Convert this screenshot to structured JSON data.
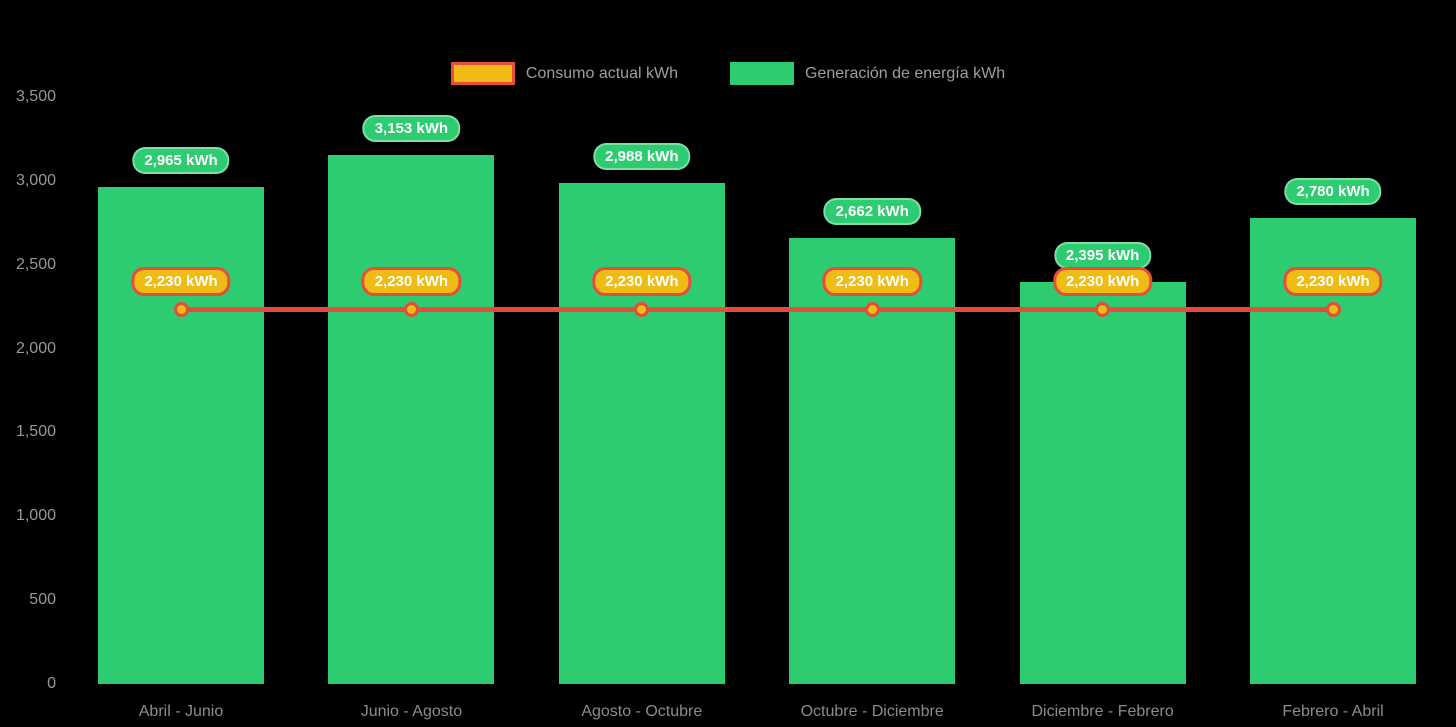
{
  "legend": {
    "items": [
      {
        "label": "Consumo actual kWh",
        "swatch": "consumption"
      },
      {
        "label": "Generación de energía kWh",
        "swatch": "generation"
      }
    ]
  },
  "colors": {
    "background": "#000000",
    "bar_green": "#2ecc71",
    "line_red": "#e64c3c",
    "marker_yellow": "#eebc15",
    "axis_text_gray": "#989898",
    "pill_text": "#ffffff"
  },
  "chart_data": {
    "type": "bar",
    "subtype": "bar-with-line-overlay",
    "categories": [
      "Abril - Junio",
      "Junio - Agosto",
      "Agosto - Octubre",
      "Octubre - Diciembre",
      "Diciembre - Febrero",
      "Febrero - Abril"
    ],
    "series": [
      {
        "name": "Generación de energía kWh",
        "type": "bar",
        "values": [
          2965,
          3153,
          2988,
          2662,
          2395,
          2780
        ],
        "labels": [
          "2,965 kWh",
          "3,153 kWh",
          "2,988 kWh",
          "2,662 kWh",
          "2,395 kWh",
          "2,780 kWh"
        ]
      },
      {
        "name": "Consumo actual kWh",
        "type": "line",
        "values": [
          2230,
          2230,
          2230,
          2230,
          2230,
          2230
        ],
        "labels": [
          "2,230 kWh",
          "2,230 kWh",
          "2,230 kWh",
          "2,230 kWh",
          "2,230 kWh",
          "2,230 kWh"
        ]
      }
    ],
    "title": "",
    "xlabel": "",
    "ylabel": "",
    "ylim": [
      0,
      3500
    ],
    "yticks": [
      {
        "value": 0,
        "label": "0"
      },
      {
        "value": 500,
        "label": "500"
      },
      {
        "value": 1000,
        "label": "1,000"
      },
      {
        "value": 1500,
        "label": "1,500"
      },
      {
        "value": 2000,
        "label": "2,000"
      },
      {
        "value": 2500,
        "label": "2,500"
      },
      {
        "value": 3000,
        "label": "3,000"
      },
      {
        "value": 3500,
        "label": "3,500"
      }
    ],
    "grid": false,
    "legend_position": "top-center"
  }
}
